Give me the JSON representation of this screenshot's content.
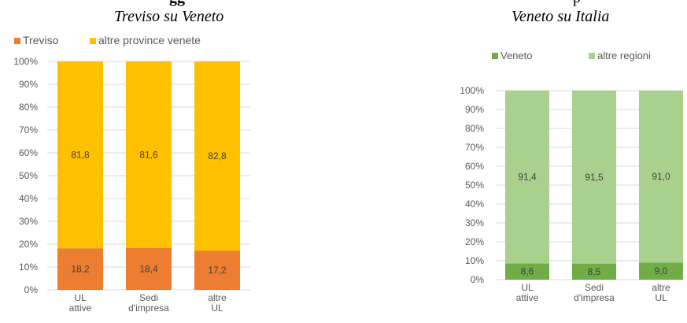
{
  "chart_data": [
    {
      "type": "bar",
      "stacked": true,
      "percent": true,
      "title": "Treviso su Veneto",
      "title_fragment": "gg",
      "categories": [
        [
          "UL",
          "attive"
        ],
        [
          "Sedi",
          "d'impresa"
        ],
        [
          "altre",
          "UL"
        ]
      ],
      "series": [
        {
          "name": "Treviso",
          "color": "#ED7D31",
          "values": [
            18.2,
            18.4,
            17.2
          ],
          "labels": [
            "18,2",
            "18,4",
            "17,2"
          ]
        },
        {
          "name": "altre province venete",
          "color": "#FFC000",
          "values": [
            81.8,
            81.6,
            82.8
          ],
          "labels": [
            "81,8",
            "81,6",
            "82,8"
          ]
        }
      ],
      "yticks": [
        "0%",
        "10%",
        "20%",
        "30%",
        "40%",
        "50%",
        "60%",
        "70%",
        "80%",
        "90%",
        "100%"
      ],
      "ylim": [
        0,
        100
      ],
      "grid": true,
      "legend": "top-left"
    },
    {
      "type": "bar",
      "stacked": true,
      "percent": true,
      "title": "Veneto su Italia",
      "title_fragment": "p",
      "categories": [
        [
          "UL",
          "attive"
        ],
        [
          "Sedi",
          "d'impresa"
        ],
        [
          "altre",
          "UL"
        ]
      ],
      "series": [
        {
          "name": "Veneto",
          "color": "#70AD47",
          "values": [
            8.6,
            8.5,
            9.0
          ],
          "labels": [
            "8,6",
            "8,5",
            "9,0"
          ]
        },
        {
          "name": "altre regioni",
          "color": "#A9D18E",
          "values": [
            91.4,
            91.5,
            91.0
          ],
          "labels": [
            "91,4",
            "91,5",
            "91,0"
          ]
        }
      ],
      "yticks": [
        "0%",
        "10%",
        "20%",
        "30%",
        "40%",
        "50%",
        "60%",
        "70%",
        "80%",
        "90%",
        "100%"
      ],
      "ylim": [
        0,
        100
      ],
      "grid": true,
      "legend": "top-left"
    }
  ]
}
